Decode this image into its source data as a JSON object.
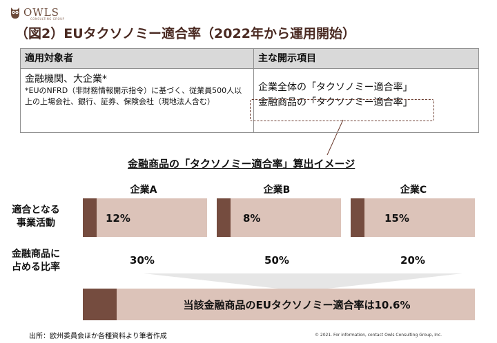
{
  "header": {
    "logo_text": "OWLS",
    "logo_subtext": "CONSULTING GROUP",
    "title": "（図2）EUタクソノミー適合率（2022年から運用開始）"
  },
  "table": {
    "headers": [
      "適用対象者",
      "主な開示項目"
    ],
    "target": {
      "main": "金融機関、大企業*",
      "note": "*EUのNFRD（非財務情報開示指令）に基づく、従業員500人以上の上場会社、銀行、証券、保険会社（現地法人含む）"
    },
    "disclosures": [
      "企業全体の「タクソノミー適合率」",
      "金融商品の「タクソノミー適合率」"
    ]
  },
  "illustration": {
    "title": "金融商品の「タクソノミー適合率」算出イメージ",
    "companies": [
      "企業A",
      "企業B",
      "企業C"
    ],
    "row_labels": {
      "alignment": [
        "適合となる",
        "事業活動"
      ],
      "share": [
        "金融商品に",
        "占める比率"
      ]
    },
    "alignment_rates": [
      12,
      8,
      15
    ],
    "alignment_labels": [
      "12%",
      "8%",
      "15%"
    ],
    "portfolio_shares": [
      "30%",
      "50%",
      "20%"
    ],
    "result": {
      "text": "当該金融商品のEUタクソノミー適合率は10.6%",
      "value": 10.6
    }
  },
  "footer": {
    "source": "出所：欧州委員会ほか各種資料より筆者作成",
    "copyright": "© 2021. For information, contact Owls Consulting Group, Inc."
  },
  "colors": {
    "dark_brown": "#754c3f",
    "light_tan": "#dcc3b9",
    "title_brown": "#4a2a22",
    "header_gray": "#d9d9d9",
    "arrow_gray": "#e6e6e6"
  }
}
